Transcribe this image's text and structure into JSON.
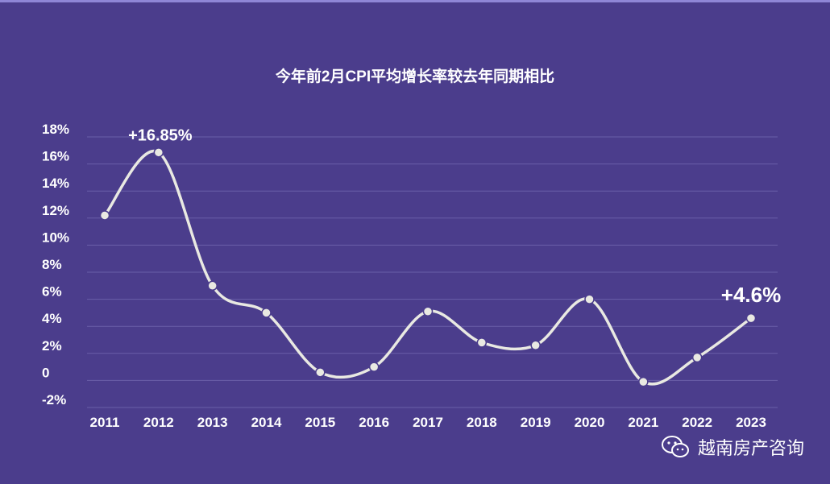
{
  "chart_data": {
    "type": "line",
    "title": "今年前2月CPI平均增长率较去年同期相比",
    "categories": [
      "2011",
      "2012",
      "2013",
      "2014",
      "2015",
      "2016",
      "2017",
      "2018",
      "2019",
      "2020",
      "2021",
      "2022",
      "2023"
    ],
    "values": [
      12.2,
      16.85,
      7.0,
      5.0,
      0.6,
      1.0,
      5.1,
      2.8,
      2.6,
      6.0,
      -0.1,
      1.7,
      4.6
    ],
    "y_ticks": [
      18,
      16,
      14,
      12,
      10,
      8,
      6,
      4,
      2,
      0,
      -2
    ],
    "y_tick_labels": [
      "18%",
      "16%",
      "14%",
      "12%",
      "10%",
      "8%",
      "6%",
      "4%",
      "2%",
      "0",
      "-2%"
    ],
    "ylim": [
      -2,
      18
    ],
    "grid": true,
    "annotations": [
      {
        "index": 1,
        "text": "+16.85%"
      },
      {
        "index": 12,
        "text": "+4.6%"
      }
    ],
    "line_color": "#e9e9e2",
    "background_color": "#4b3d8c"
  },
  "watermark": {
    "icon": "wechat-icon",
    "text": "越南房产咨询"
  }
}
